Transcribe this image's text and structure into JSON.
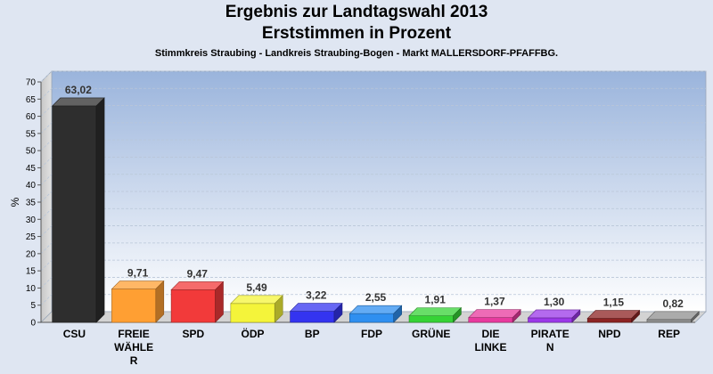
{
  "chart_data": {
    "type": "bar",
    "title": "Ergebnis zur Landtagswahl 2013",
    "subtitle": "Erststimmen in Prozent",
    "subsubtitle": "Stimmkreis Straubing - Landkreis Straubing-Bogen - Markt MALLERSDORF-PFAFFBG.",
    "ylabel": "%",
    "xlabel": "",
    "ylim": [
      0,
      70
    ],
    "yticks": [
      0,
      5,
      10,
      15,
      20,
      25,
      30,
      35,
      40,
      45,
      50,
      55,
      60,
      65,
      70
    ],
    "grid": true,
    "categories": [
      [
        "CSU"
      ],
      [
        "FREIE",
        "WÄHLE",
        "R"
      ],
      [
        "SPD"
      ],
      [
        "ÖDP"
      ],
      [
        "BP"
      ],
      [
        "FDP"
      ],
      [
        "GRÜNE"
      ],
      [
        "DIE",
        "LINKE"
      ],
      [
        "PIRATE",
        "N"
      ],
      [
        "NPD"
      ],
      [
        "REP"
      ]
    ],
    "values": [
      63.02,
      9.71,
      9.47,
      5.49,
      3.22,
      2.55,
      1.91,
      1.37,
      1.3,
      1.15,
      0.82
    ],
    "value_labels": [
      "63,02",
      "9,71",
      "9,47",
      "5,49",
      "3,22",
      "2,55",
      "1,91",
      "1,37",
      "1,30",
      "1,15",
      "0,82"
    ],
    "colors": [
      "#2e2e2e",
      "#ff9f33",
      "#f23a3a",
      "#f4f43a",
      "#3434f0",
      "#2f8ff0",
      "#36d336",
      "#e83a9e",
      "#9b38e8",
      "#8c2323",
      "#8f8f8f"
    ]
  }
}
